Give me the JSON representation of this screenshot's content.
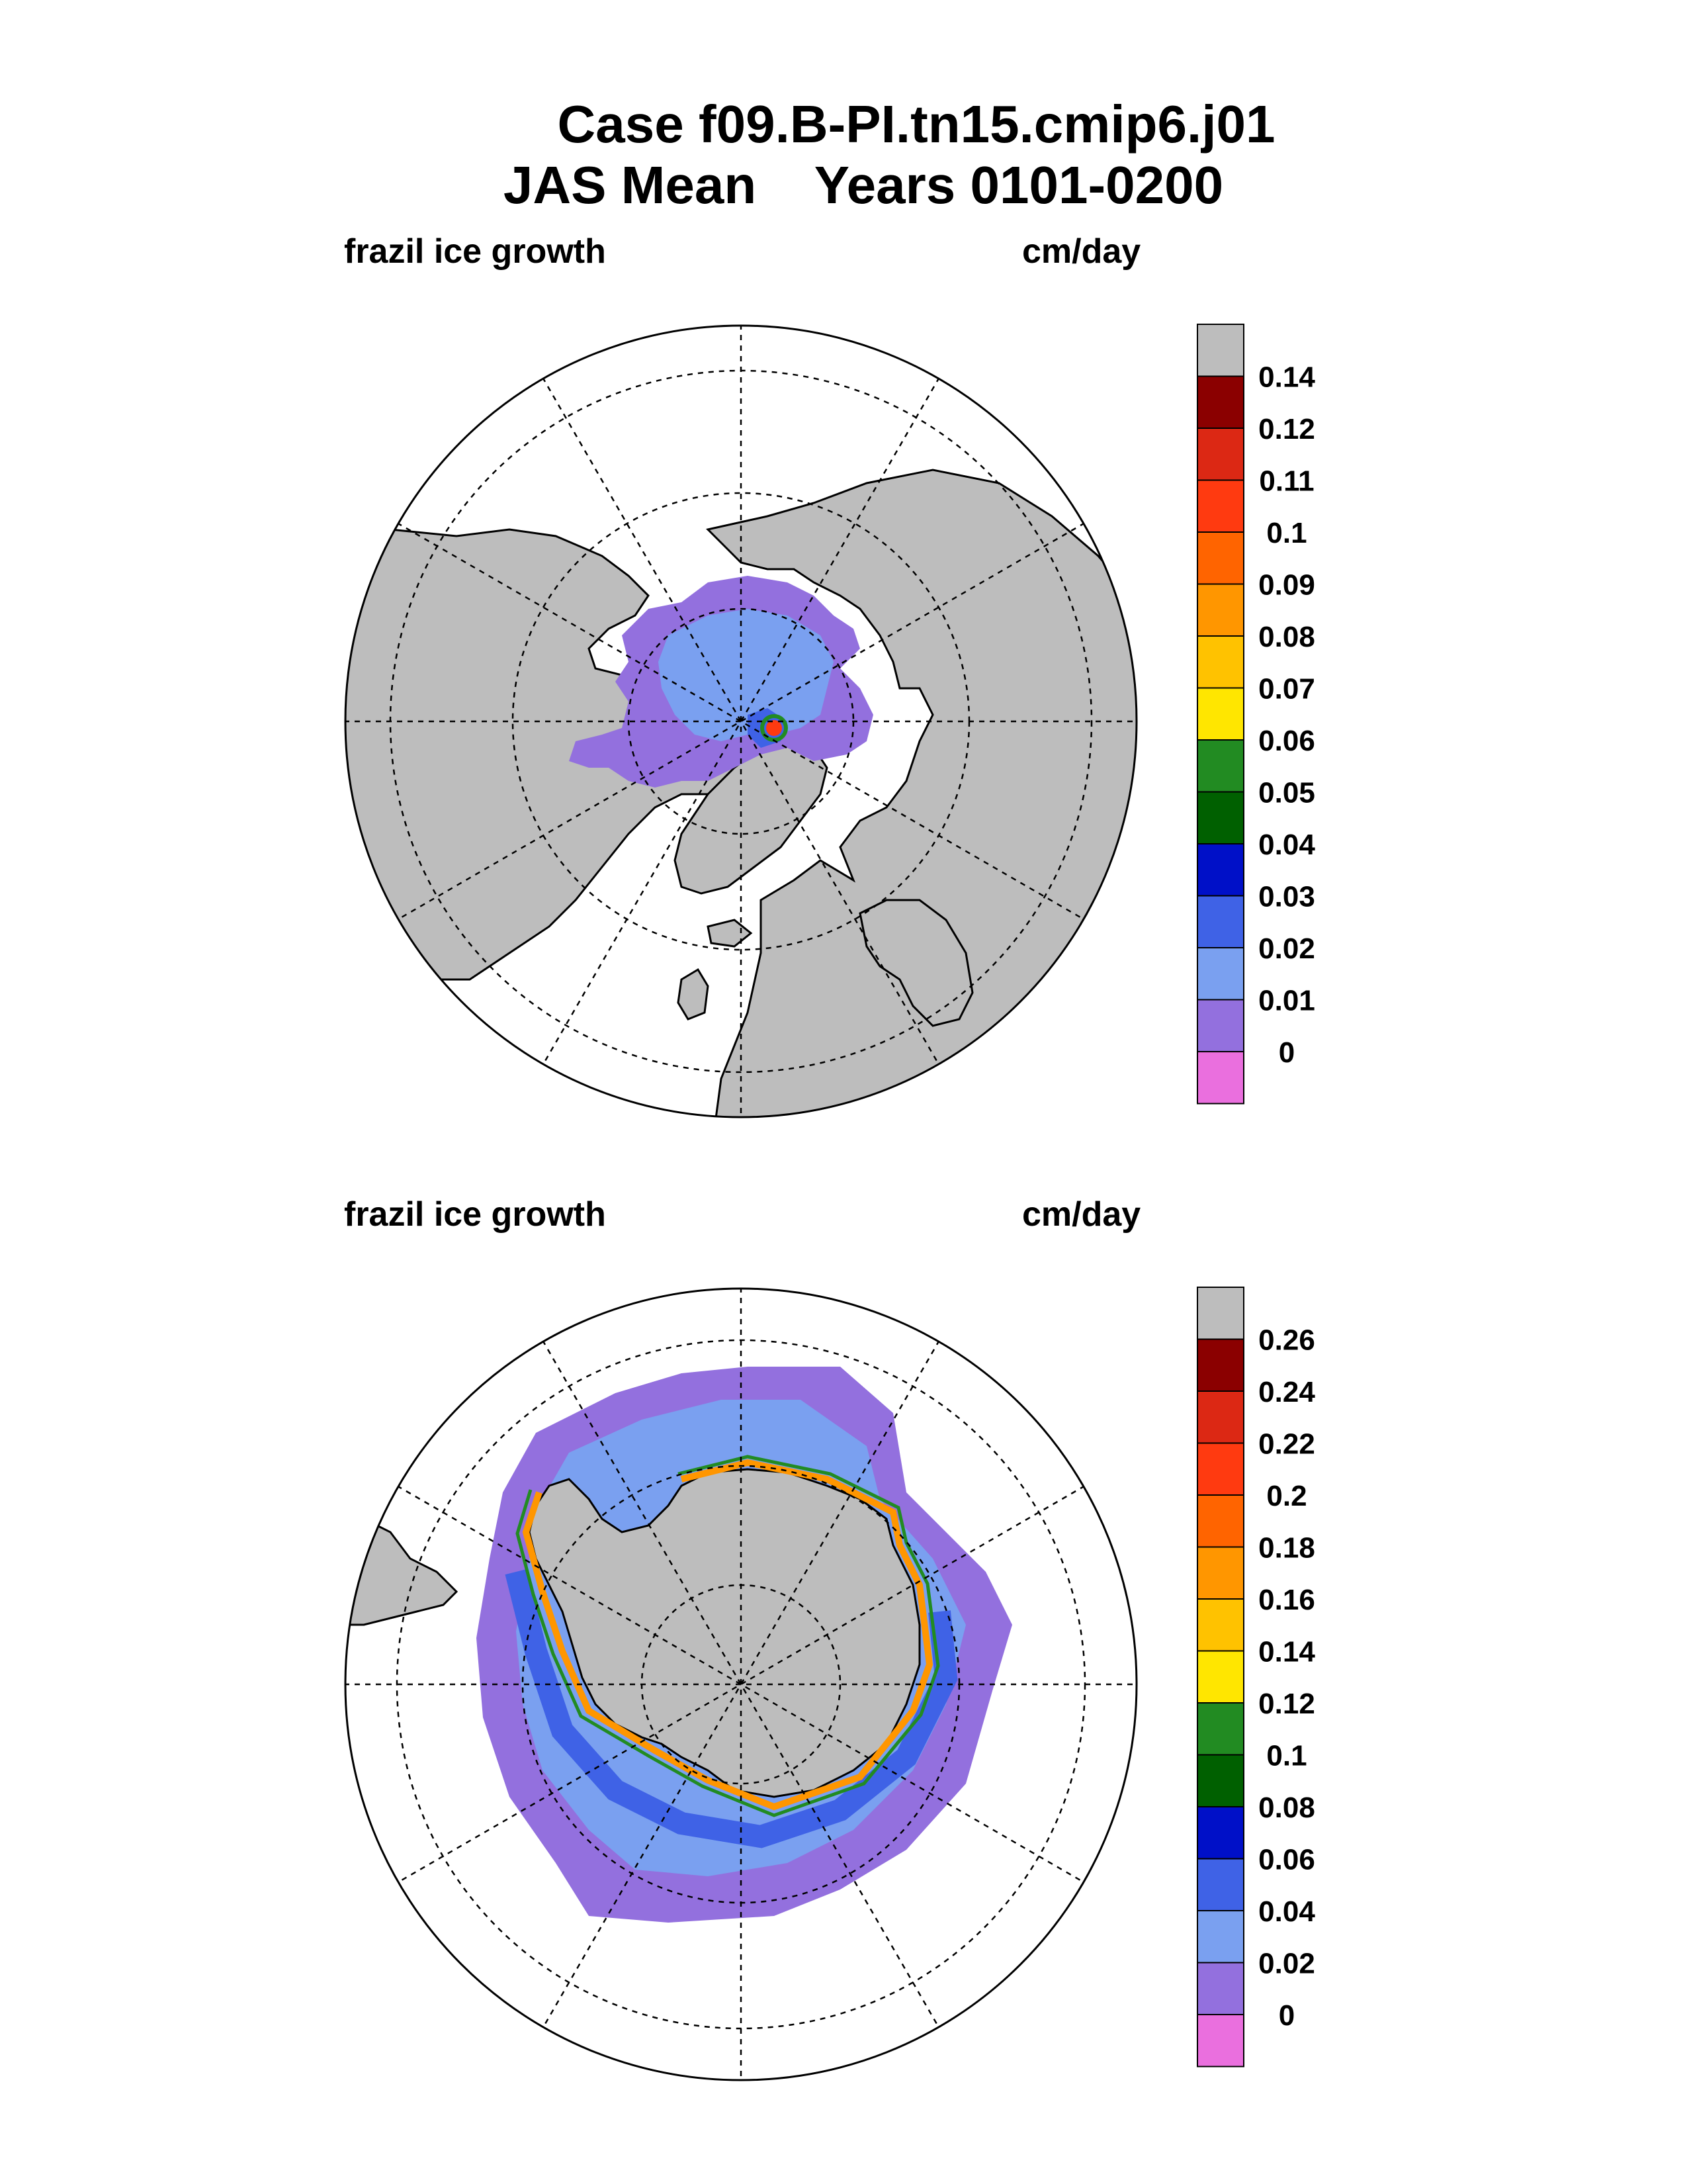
{
  "title": {
    "line1": "Case f09.B-PI.tn15.cmip6.j01",
    "line2": "JAS Mean    Years 0101-0200"
  },
  "colors": {
    "land": "#bdbdbd",
    "ocean": "#ffffff",
    "levels": [
      "#ea6fde",
      "#9370de",
      "#7aa0f0",
      "#3f62e6",
      "#0010c8",
      "#006000",
      "#228b22",
      "#ffe600",
      "#ffc200",
      "#ff9600",
      "#ff6400",
      "#ff3a10",
      "#dc2814",
      "#8b0000",
      "#bdbdbd"
    ]
  },
  "panels": [
    {
      "hemisphere": "north",
      "left_label": "frazil ice growth",
      "right_label": "cm/day",
      "colorbar_ticks": [
        "0.14",
        "0.12",
        "0.11",
        "0.1",
        "0.09",
        "0.08",
        "0.07",
        "0.06",
        "0.05",
        "0.04",
        "0.03",
        "0.02",
        "0.01",
        "0"
      ]
    },
    {
      "hemisphere": "south",
      "left_label": "frazil ice growth",
      "right_label": "cm/day",
      "colorbar_ticks": [
        "0.26",
        "0.24",
        "0.22",
        "0.2",
        "0.18",
        "0.16",
        "0.14",
        "0.12",
        "0.1",
        "0.08",
        "0.06",
        "0.04",
        "0.02",
        "0"
      ]
    }
  ]
}
